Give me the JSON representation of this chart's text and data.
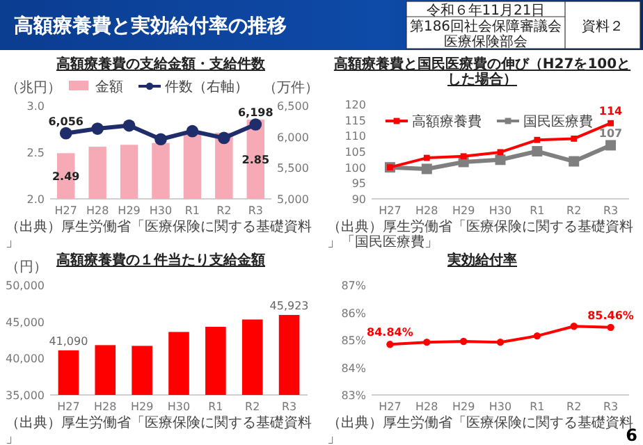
{
  "chart_data": [
    {
      "type": "bar",
      "title": "高額療養費の支給金額・支給件数",
      "ylabel": "（兆円）",
      "y2label": "（万件）",
      "categories": [
        "H27",
        "H28",
        "H29",
        "H30",
        "R1",
        "R2",
        "R3"
      ],
      "ylim": [
        2.0,
        3.0
      ],
      "yticks": [
        {
          "value": 2.0,
          "label": "2.0"
        },
        {
          "value": 2.5,
          "label": "2.5"
        },
        {
          "value": 3.0,
          "label": "3.0"
        }
      ],
      "y2lim": [
        5000,
        6500
      ],
      "y2ticks": [
        {
          "value": 5000,
          "label": "5,000"
        },
        {
          "value": 5500,
          "label": "5,500"
        },
        {
          "value": 6000,
          "label": "6,000"
        },
        {
          "value": 6500,
          "label": "6,500"
        }
      ],
      "legend": "top",
      "marker": "circle",
      "series": [
        {
          "name": "金額",
          "color": "#f6aab5",
          "values": [
            2.49,
            2.56,
            2.58,
            2.6,
            2.7,
            2.71,
            2.85
          ],
          "value_labels": [
            "2.49",
            null,
            null,
            null,
            null,
            null,
            "2.85"
          ]
        },
        {
          "name": "件数（右軸）",
          "type": "line",
          "axis": "y2",
          "color": "#1f2d6b",
          "values": [
            6056,
            6130,
            6180,
            5960,
            6090,
            5980,
            6198
          ],
          "value_labels": [
            "6,056",
            null,
            null,
            null,
            null,
            null,
            "6,198"
          ]
        }
      ],
      "annotations": [
        "（出典）厚生労働省「医療保険に関する基礎資料」",
        "高額療養費と実効給付率の推移",
        "令和６年11月21日",
        "第186回社会保障審議会",
        "資料２",
        "6",
        "医療保険部会"
      ]
    },
    {
      "type": "line",
      "title": "高額療養費と国民医療費の伸び（H27を100とした場合）",
      "categories": [
        "H27",
        "H28",
        "H29",
        "H30",
        "R1",
        "R2",
        "R3"
      ],
      "ylim": [
        90,
        120
      ],
      "yticks": [
        90,
        95,
        100,
        105,
        110,
        115,
        120
      ],
      "legend": "top left",
      "marker": "square",
      "series": [
        {
          "name": "高額療養費",
          "color": "#ff0000",
          "values": [
            100,
            103.0,
            103.5,
            104.8,
            108.7,
            109.1,
            114
          ],
          "value_labels": [
            null,
            null,
            null,
            null,
            null,
            null,
            "114"
          ]
        },
        {
          "name": "国民医療費",
          "color": "#7f7f7f",
          "values": [
            100,
            99.5,
            101.7,
            102.4,
            105.1,
            101.9,
            107
          ],
          "value_labels": [
            null,
            null,
            null,
            null,
            null,
            null,
            "107"
          ]
        }
      ],
      "annotations": [
        "（出典）厚生労働省「医療保険に関する基礎資料」「国民医療費」"
      ]
    },
    {
      "type": "bar",
      "title": "高額療養費の１件当たり支給金額",
      "ylabel": "（円）",
      "categories": [
        "H27",
        "H28",
        "H29",
        "H30",
        "R1",
        "R2",
        "R3"
      ],
      "ylim": [
        35000,
        50000
      ],
      "yticks": [
        {
          "value": 35000,
          "label": "35,000"
        },
        {
          "value": 40000,
          "label": "40,000"
        },
        {
          "value": 45000,
          "label": "45,000"
        },
        {
          "value": 50000,
          "label": "50,000"
        }
      ],
      "series": [
        {
          "color": "#ff0000",
          "values": [
            41090,
            41800,
            41700,
            43600,
            44300,
            45300,
            45923
          ],
          "value_labels": [
            "41,090",
            null,
            null,
            null,
            null,
            null,
            "45,923"
          ]
        }
      ],
      "annotations": [
        "（出典）厚生労働省「医療保険に関する基礎資料」"
      ]
    },
    {
      "type": "line",
      "title": "実効給付率",
      "categories": [
        "H27",
        "H28",
        "H29",
        "H30",
        "R1",
        "R2",
        "R3"
      ],
      "ylim": [
        83,
        87
      ],
      "yticks": [
        {
          "value": 83,
          "label": "83%"
        },
        {
          "value": 84,
          "label": "84%"
        },
        {
          "value": 85,
          "label": "85%"
        },
        {
          "value": 86,
          "label": "86%"
        },
        {
          "value": 87,
          "label": "87%"
        }
      ],
      "marker": "circle",
      "series": [
        {
          "color": "#ff0000",
          "values": [
            84.84,
            84.92,
            84.95,
            84.92,
            85.15,
            85.5,
            85.46
          ],
          "value_labels": [
            "84.84%",
            null,
            null,
            null,
            null,
            null,
            "85.46%"
          ]
        }
      ],
      "annotations": [
        "（出典）厚生労働省「医療保険に関する基礎資料」"
      ]
    }
  ]
}
